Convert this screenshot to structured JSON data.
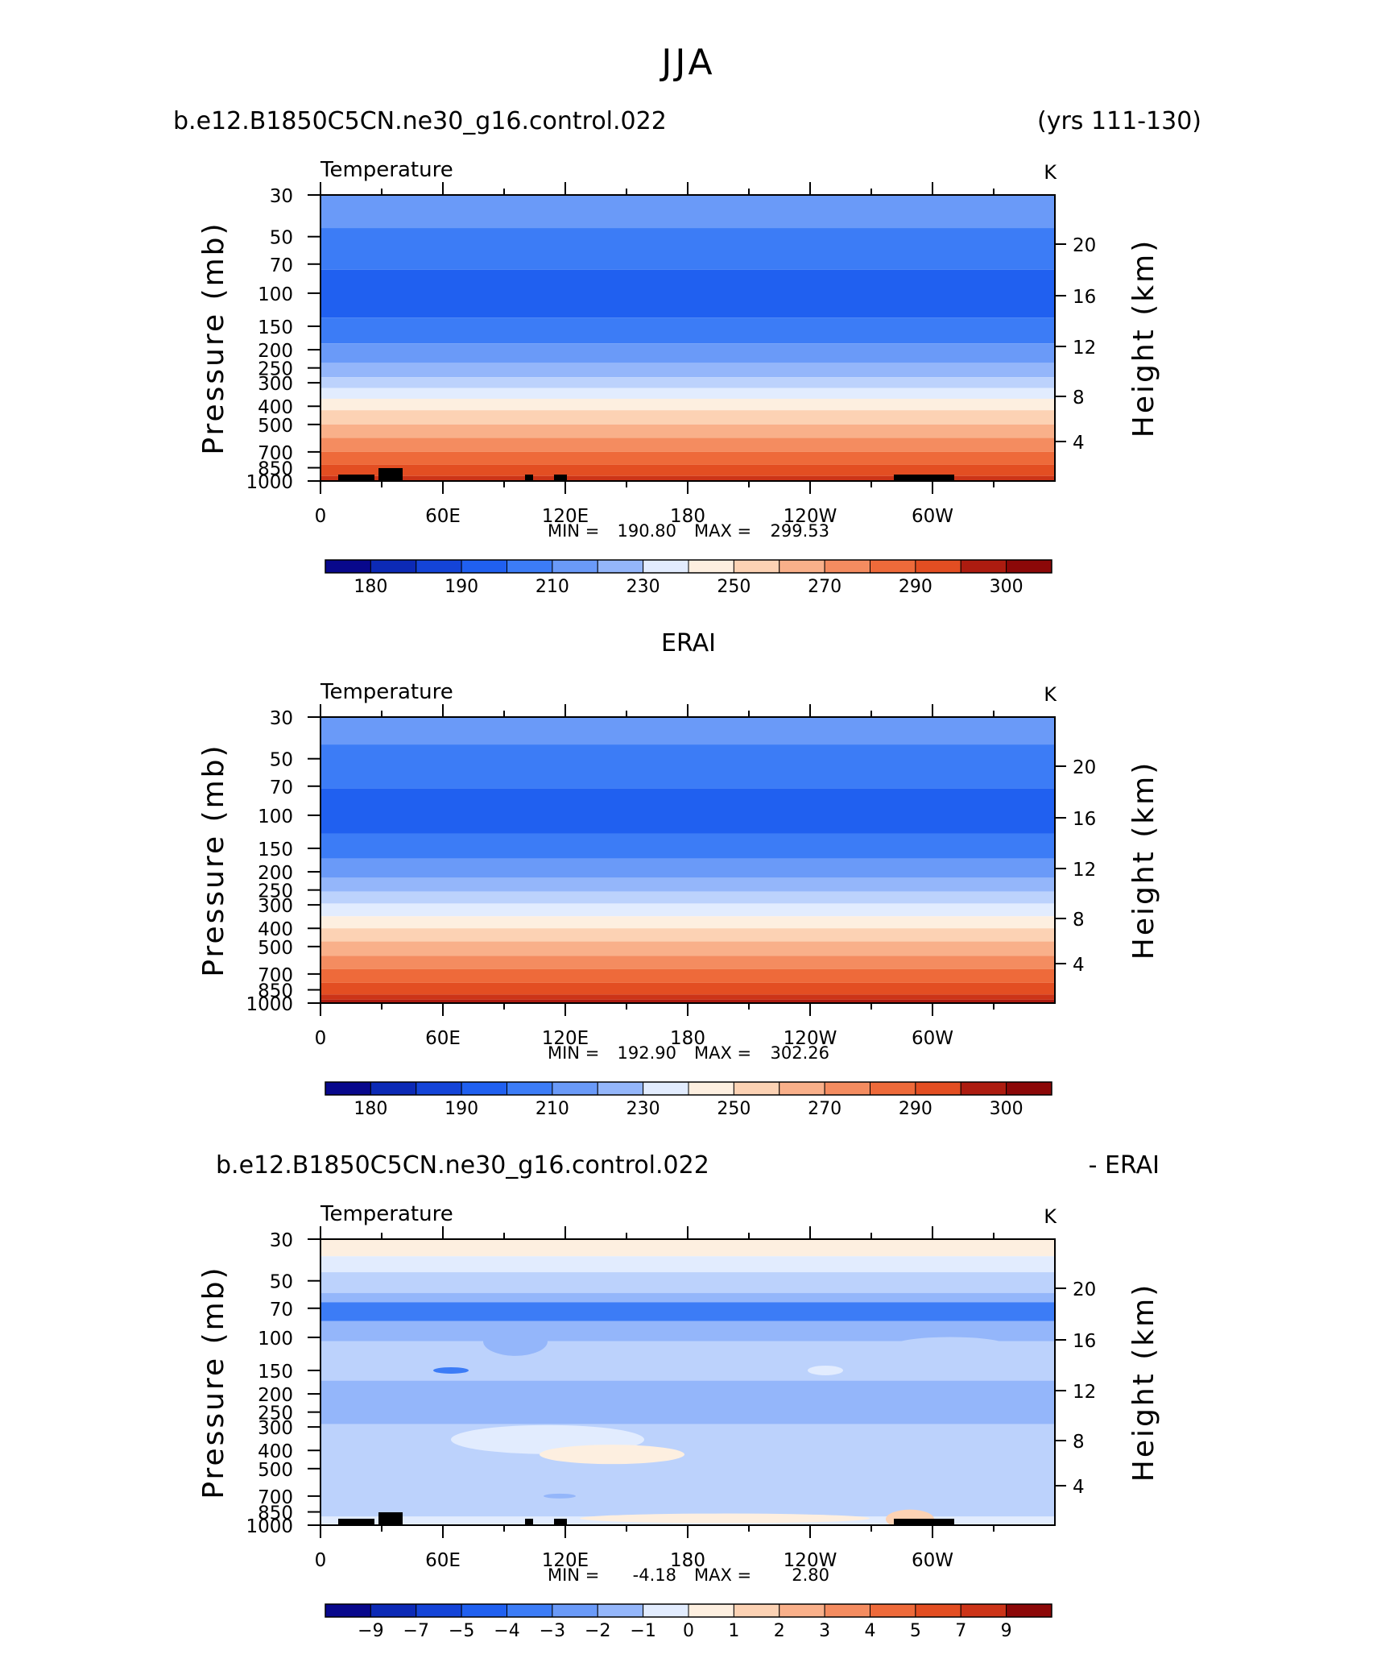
{
  "main_title": "JJA",
  "palette": [
    "#08088c",
    "#0c2ab6",
    "#1444d8",
    "#2060f0",
    "#3c7cf6",
    "#6a9af8",
    "#94b6fa",
    "#bcd2fc",
    "#e2ecfe",
    "#fdefe0",
    "#fcd2b4",
    "#f9b08a",
    "#f48c60",
    "#ee6a3a",
    "#e34e22",
    "#cc3418",
    "#ad1c10",
    "#8c0808"
  ],
  "panels": [
    {
      "title_left": "b.e12.B1850C5CN.ne30_g16.control.022",
      "title_center": "",
      "title_right": "(yrs 111-130)",
      "variable": "Temperature",
      "units": "K",
      "ylabel": "Pressure (mb)",
      "y2label": "Height (km)",
      "x_ticks": [
        "0",
        "60E",
        "120E",
        "180",
        "120W",
        "60W"
      ],
      "y_ticks": [
        "30",
        "50",
        "70",
        "100",
        "150",
        "200",
        "250",
        "300",
        "400",
        "500",
        "700",
        "850",
        "1000"
      ],
      "y2_ticks": [
        "20",
        "16",
        "12",
        "8",
        "4"
      ],
      "stats": {
        "min_label": "MIN =",
        "min": "190.80",
        "max_label": "MAX =",
        "max": "299.53"
      },
      "colorbar_labels": [
        "180",
        "190",
        "210",
        "230",
        "250",
        "270",
        "290",
        "300"
      ]
    },
    {
      "title_left": "",
      "title_center": "ERAI",
      "title_right": "",
      "variable": "Temperature",
      "units": "K",
      "ylabel": "Pressure (mb)",
      "y2label": "Height (km)",
      "x_ticks": [
        "0",
        "60E",
        "120E",
        "180",
        "120W",
        "60W"
      ],
      "y_ticks": [
        "30",
        "50",
        "70",
        "100",
        "150",
        "200",
        "250",
        "300",
        "400",
        "500",
        "700",
        "850",
        "1000"
      ],
      "y2_ticks": [
        "20",
        "16",
        "12",
        "8",
        "4"
      ],
      "stats": {
        "min_label": "MIN =",
        "min": "192.90",
        "max_label": "MAX =",
        "max": "302.26"
      },
      "colorbar_labels": [
        "180",
        "190",
        "210",
        "230",
        "250",
        "270",
        "290",
        "300"
      ]
    },
    {
      "title_left": "b.e12.B1850C5CN.ne30_g16.control.022",
      "title_center": "",
      "title_right": "- ERAI",
      "variable": "Temperature",
      "units": "K",
      "ylabel": "Pressure (mb)",
      "y2label": "Height (km)",
      "x_ticks": [
        "0",
        "60E",
        "120E",
        "180",
        "120W",
        "60W"
      ],
      "y_ticks": [
        "30",
        "50",
        "70",
        "100",
        "150",
        "200",
        "250",
        "300",
        "400",
        "500",
        "700",
        "850",
        "1000"
      ],
      "y2_ticks": [
        "20",
        "16",
        "12",
        "8",
        "4"
      ],
      "stats": {
        "min_label": "MIN =",
        "min": "-4.18",
        "max_label": "MAX =",
        "max": "2.80"
      },
      "colorbar_labels": [
        "−9",
        "−7",
        "−5",
        "−4",
        "−3",
        "−2",
        "−1",
        "0",
        "1",
        "2",
        "3",
        "4",
        "5",
        "7",
        "9"
      ]
    }
  ],
  "chart_data": [
    {
      "type": "heatmap",
      "title": "Temperature",
      "units": "K",
      "x_ticks": [
        "0",
        "60E",
        "120E",
        "180",
        "120W",
        "60W"
      ],
      "y_ticks_mb": [
        30,
        50,
        70,
        100,
        150,
        200,
        250,
        300,
        400,
        500,
        700,
        850,
        1000
      ],
      "y2_ticks_km": [
        20,
        16,
        12,
        8,
        4
      ],
      "ylog": true,
      "levels": [
        180,
        185,
        190,
        200,
        210,
        220,
        230,
        240,
        250,
        260,
        270,
        280,
        290,
        295,
        300
      ],
      "bands_mb": [
        {
          "from": 30,
          "to": 45,
          "color_index": 5
        },
        {
          "from": 45,
          "to": 75,
          "color_index": 4
        },
        {
          "from": 75,
          "to": 135,
          "color_index": 3
        },
        {
          "from": 135,
          "to": 185,
          "color_index": 4
        },
        {
          "from": 185,
          "to": 235,
          "color_index": 5
        },
        {
          "from": 235,
          "to": 280,
          "color_index": 6
        },
        {
          "from": 280,
          "to": 320,
          "color_index": 7
        },
        {
          "from": 320,
          "to": 365,
          "color_index": 8
        },
        {
          "from": 365,
          "to": 420,
          "color_index": 9
        },
        {
          "from": 420,
          "to": 500,
          "color_index": 10
        },
        {
          "from": 500,
          "to": 590,
          "color_index": 11
        },
        {
          "from": 590,
          "to": 700,
          "color_index": 12
        },
        {
          "from": 700,
          "to": 820,
          "color_index": 13
        },
        {
          "from": 820,
          "to": 940,
          "color_index": 14
        },
        {
          "from": 940,
          "to": 1000,
          "color_index": 15
        }
      ],
      "min": 190.8,
      "max": 299.53
    },
    {
      "type": "heatmap",
      "title": "Temperature",
      "units": "K",
      "x_ticks": [
        "0",
        "60E",
        "120E",
        "180",
        "120W",
        "60W"
      ],
      "y_ticks_mb": [
        30,
        50,
        70,
        100,
        150,
        200,
        250,
        300,
        400,
        500,
        700,
        850,
        1000
      ],
      "y2_ticks_km": [
        20,
        16,
        12,
        8,
        4
      ],
      "ylog": true,
      "levels": [
        180,
        185,
        190,
        200,
        210,
        220,
        230,
        240,
        250,
        260,
        270,
        280,
        290,
        295,
        300
      ],
      "bands_mb": [
        {
          "from": 30,
          "to": 42,
          "color_index": 5
        },
        {
          "from": 42,
          "to": 72,
          "color_index": 4
        },
        {
          "from": 72,
          "to": 125,
          "color_index": 3
        },
        {
          "from": 125,
          "to": 170,
          "color_index": 4
        },
        {
          "from": 170,
          "to": 215,
          "color_index": 5
        },
        {
          "from": 215,
          "to": 255,
          "color_index": 6
        },
        {
          "from": 255,
          "to": 295,
          "color_index": 7
        },
        {
          "from": 295,
          "to": 345,
          "color_index": 8
        },
        {
          "from": 345,
          "to": 400,
          "color_index": 9
        },
        {
          "from": 400,
          "to": 470,
          "color_index": 10
        },
        {
          "from": 470,
          "to": 560,
          "color_index": 11
        },
        {
          "from": 560,
          "to": 660,
          "color_index": 12
        },
        {
          "from": 660,
          "to": 780,
          "color_index": 13
        },
        {
          "from": 780,
          "to": 900,
          "color_index": 14
        },
        {
          "from": 900,
          "to": 960,
          "color_index": 15
        },
        {
          "from": 960,
          "to": 1000,
          "color_index": 16
        }
      ],
      "min": 192.9,
      "max": 302.26
    },
    {
      "type": "heatmap",
      "title": "Temperature",
      "units": "K",
      "x_ticks": [
        "0",
        "60E",
        "120E",
        "180",
        "120W",
        "60W"
      ],
      "y_ticks_mb": [
        30,
        50,
        70,
        100,
        150,
        200,
        250,
        300,
        400,
        500,
        700,
        850,
        1000
      ],
      "y2_ticks_km": [
        20,
        16,
        12,
        8,
        4
      ],
      "ylog": true,
      "levels": [
        -9,
        -7,
        -5,
        -4,
        -3,
        -2,
        -1,
        0,
        1,
        2,
        3,
        4,
        5,
        7,
        9
      ],
      "bands_mb": [
        {
          "from": 30,
          "to": 37,
          "color_index": 9
        },
        {
          "from": 37,
          "to": 45,
          "color_index": 8
        },
        {
          "from": 45,
          "to": 58,
          "color_index": 7
        },
        {
          "from": 58,
          "to": 65,
          "color_index": 6
        },
        {
          "from": 65,
          "to": 82,
          "color_index": 4
        },
        {
          "from": 82,
          "to": 105,
          "color_index": 6
        },
        {
          "from": 105,
          "to": 170,
          "color_index": 7
        },
        {
          "from": 170,
          "to": 290,
          "color_index": 6
        },
        {
          "from": 290,
          "to": 900,
          "color_index": 7
        },
        {
          "from": 900,
          "to": 1000,
          "color_index": 8
        }
      ],
      "min": -4.18,
      "max": 2.8
    }
  ]
}
